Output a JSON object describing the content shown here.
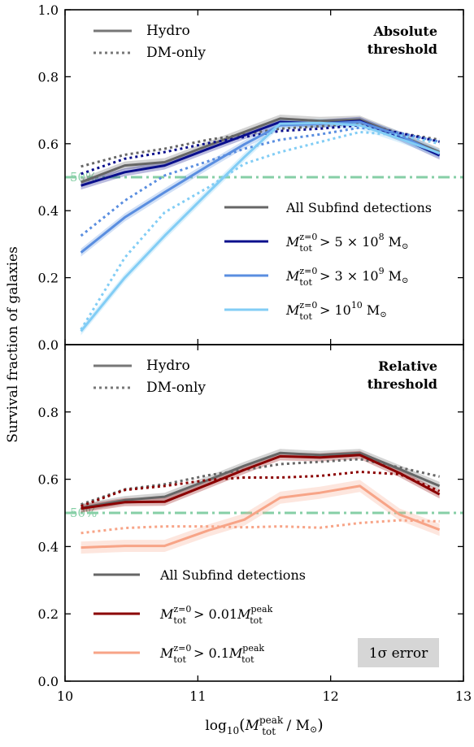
{
  "figure": {
    "ylabel": "Survival fraction of galaxies",
    "xlabel_main": "log",
    "xlabel_sub": "10",
    "xlabel_paren_open": "(",
    "xlabel_M": "M",
    "xlabel_M_sup": "peak",
    "xlabel_M_sub": "tot",
    "xlabel_tail": " / M",
    "xlabel_sun": "⊙",
    "xlabel_paren_close": ")",
    "fifty_label": "50%"
  },
  "chart_data": [
    {
      "type": "line",
      "panel": "top",
      "title": "Absolute threshold",
      "title_lines": [
        "Absolute",
        "threshold"
      ],
      "xlim": [
        10,
        13
      ],
      "ylim": [
        0.0,
        1.0
      ],
      "yticks": [
        0.0,
        0.2,
        0.4,
        0.6,
        0.8,
        1.0
      ],
      "ytick_labels": [
        "0.0",
        "0.2",
        "0.4",
        "0.6",
        "0.8",
        "1.0"
      ],
      "reference_line": {
        "y": 0.5,
        "label": "50%",
        "color": "#86cfa6"
      },
      "style_legend": [
        {
          "label": "Hydro",
          "style": "solid"
        },
        {
          "label": "DM-only",
          "style": "dotted"
        }
      ],
      "series_legend": [
        {
          "label": "All Subfind detections",
          "color": "#666666"
        },
        {
          "label": "M_tot^{z=0} > 5 × 10^8 M_⊙",
          "parts": {
            "pre": "M",
            "sup": "z=0",
            "sub": "tot",
            "post": " > 5 × 10",
            "exp": "8",
            "unit": " M",
            "sun": "⊙"
          },
          "color": "#0a0f8c"
        },
        {
          "label": "M_tot^{z=0} > 3 × 10^9 M_⊙",
          "parts": {
            "pre": "M",
            "sup": "z=0",
            "sub": "tot",
            "post": " > 3 × 10",
            "exp": "9",
            "unit": " M",
            "sun": "⊙"
          },
          "color": "#5a8ee0"
        },
        {
          "label": "M_tot^{z=0} > 10^10 M_⊙",
          "parts": {
            "pre": "M",
            "sup": "z=0",
            "sub": "tot",
            "post": " > 10",
            "exp": "10",
            "unit": " M",
            "sun": "⊙"
          },
          "color": "#82cdf5"
        }
      ],
      "x": [
        10.12,
        10.45,
        10.75,
        11.08,
        11.35,
        11.62,
        11.92,
        12.22,
        12.52,
        12.82
      ],
      "series": [
        {
          "color": "#666666",
          "style": "solid",
          "band": 0.012,
          "values": [
            0.485,
            0.535,
            0.545,
            0.595,
            0.635,
            0.675,
            0.668,
            0.672,
            0.625,
            0.575
          ]
        },
        {
          "color": "#666666",
          "style": "dotted",
          "values": [
            0.532,
            0.567,
            0.585,
            0.612,
            0.628,
            0.645,
            0.652,
            0.662,
            0.632,
            0.612
          ]
        },
        {
          "color": "#0a0f8c",
          "style": "solid",
          "band": 0.012,
          "values": [
            0.475,
            0.515,
            0.535,
            0.585,
            0.625,
            0.665,
            0.66,
            0.668,
            0.62,
            0.565
          ]
        },
        {
          "color": "#0a0f8c",
          "style": "dotted",
          "values": [
            0.51,
            0.555,
            0.575,
            0.602,
            0.62,
            0.638,
            0.645,
            0.655,
            0.632,
            0.606
          ]
        },
        {
          "color": "#5a8ee0",
          "style": "solid",
          "band": 0.012,
          "values": [
            0.275,
            0.38,
            0.455,
            0.535,
            0.598,
            0.655,
            0.66,
            0.665,
            0.625,
            0.57
          ]
        },
        {
          "color": "#5a8ee0",
          "style": "dotted",
          "values": [
            0.325,
            0.43,
            0.505,
            0.548,
            0.585,
            0.612,
            0.628,
            0.648,
            0.632,
            0.606
          ]
        },
        {
          "color": "#82cdf5",
          "style": "solid",
          "band": 0.012,
          "values": [
            0.04,
            0.2,
            0.325,
            0.455,
            0.56,
            0.66,
            0.662,
            0.655,
            0.615,
            0.572
          ]
        },
        {
          "color": "#82cdf5",
          "style": "dotted",
          "values": [
            0.045,
            0.26,
            0.395,
            0.47,
            0.54,
            0.575,
            0.605,
            0.635,
            0.625,
            0.6
          ]
        }
      ]
    },
    {
      "type": "line",
      "panel": "bottom",
      "title": "Relative threshold",
      "title_lines": [
        "Relative",
        "threshold"
      ],
      "xlim": [
        10,
        13
      ],
      "ylim": [
        0.0,
        1.0
      ],
      "xticks": [
        10,
        11,
        12,
        13
      ],
      "xtick_labels": [
        "10",
        "11",
        "12",
        "13"
      ],
      "yticks": [
        0.0,
        0.2,
        0.4,
        0.6,
        0.8
      ],
      "ytick_labels": [
        "0.0",
        "0.2",
        "0.4",
        "0.6",
        "0.8"
      ],
      "reference_line": {
        "y": 0.5,
        "label": "50%",
        "color": "#86cfa6"
      },
      "style_legend": [
        {
          "label": "Hydro",
          "style": "solid"
        },
        {
          "label": "DM-only",
          "style": "dotted"
        }
      ],
      "series_legend": [
        {
          "label": "All Subfind detections",
          "color": "#666666"
        },
        {
          "label": "M_tot^{z=0} > 0.01 M_tot^{peak}",
          "parts": {
            "pre": "M",
            "sup": "z=0",
            "sub": "tot",
            "post": " > 0.01",
            "m2": "M",
            "m2sup": "peak",
            "m2sub": "tot"
          },
          "color": "#8b0000"
        },
        {
          "label": "M_tot^{z=0} > 0.1 M_tot^{peak}",
          "parts": {
            "pre": "M",
            "sup": "z=0",
            "sub": "tot",
            "post": " > 0.1",
            "m2": "M",
            "m2sup": "peak",
            "m2sub": "tot"
          },
          "color": "#f7a487"
        }
      ],
      "error_box": "1σ error",
      "x": [
        10.12,
        10.45,
        10.75,
        11.08,
        11.35,
        11.62,
        11.92,
        12.22,
        12.52,
        12.82
      ],
      "series": [
        {
          "color": "#666666",
          "style": "solid",
          "band": 0.012,
          "values": [
            0.515,
            0.538,
            0.548,
            0.598,
            0.64,
            0.678,
            0.672,
            0.678,
            0.63,
            0.58
          ]
        },
        {
          "color": "#666666",
          "style": "dotted",
          "values": [
            0.525,
            0.57,
            0.585,
            0.612,
            0.628,
            0.645,
            0.652,
            0.66,
            0.635,
            0.608
          ]
        },
        {
          "color": "#8b0000",
          "style": "solid",
          "band": 0.012,
          "values": [
            0.513,
            0.532,
            0.533,
            0.585,
            0.628,
            0.668,
            0.665,
            0.672,
            0.618,
            0.555
          ]
        },
        {
          "color": "#8b0000",
          "style": "dotted",
          "values": [
            0.52,
            0.568,
            0.58,
            0.598,
            0.605,
            0.605,
            0.61,
            0.622,
            0.615,
            0.565
          ]
        },
        {
          "color": "#f7a487",
          "style": "solid",
          "band": 0.018,
          "values": [
            0.397,
            0.402,
            0.402,
            0.448,
            0.48,
            0.545,
            0.56,
            0.58,
            0.495,
            0.45
          ]
        },
        {
          "color": "#f7a487",
          "style": "dotted",
          "values": [
            0.44,
            0.455,
            0.46,
            0.46,
            0.457,
            0.46,
            0.456,
            0.47,
            0.478,
            0.475
          ]
        }
      ]
    }
  ]
}
